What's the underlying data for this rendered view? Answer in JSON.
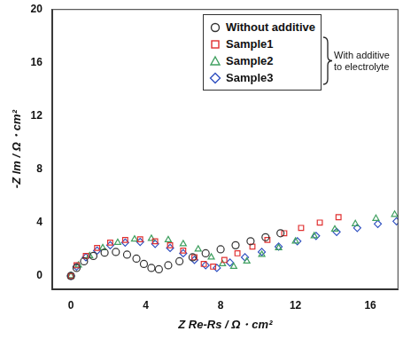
{
  "chart_data": {
    "type": "scatter",
    "x_label": "Z Re-Rs / Ω・cm²",
    "y_label": "-Z Im / Ω・cm²",
    "xlim": [
      -1,
      17.5
    ],
    "xticks": [
      0,
      4,
      8,
      12,
      16
    ],
    "ylim": [
      -1,
      20
    ],
    "yticks": [
      0,
      4,
      8,
      12,
      16,
      20
    ],
    "grid": false,
    "legend": "upper right",
    "series": [
      {
        "name": "Without additive",
        "color": "#333333",
        "marker": "circle",
        "x": [
          0,
          0.3,
          0.7,
          1.2,
          1.8,
          2.4,
          3.0,
          3.5,
          3.9,
          4.3,
          4.7,
          5.2,
          5.8,
          6.5,
          7.2,
          8.0,
          8.8,
          9.6,
          10.4,
          11.2
        ],
        "values": [
          0,
          0.6,
          1.1,
          1.5,
          1.75,
          1.8,
          1.6,
          1.3,
          0.9,
          0.6,
          0.5,
          0.8,
          1.1,
          1.4,
          1.7,
          2.0,
          2.3,
          2.6,
          2.9,
          3.2
        ]
      },
      {
        "name": "Sample1",
        "color": "#e03030",
        "marker": "square",
        "x": [
          0,
          0.3,
          0.8,
          1.4,
          2.1,
          2.9,
          3.7,
          4.5,
          5.3,
          6.0,
          6.6,
          7.1,
          7.6,
          8.2,
          8.9,
          9.7,
          10.5,
          11.4,
          12.3,
          13.3,
          14.3
        ],
        "values": [
          0,
          0.8,
          1.5,
          2.1,
          2.5,
          2.7,
          2.75,
          2.6,
          2.3,
          1.9,
          1.4,
          0.9,
          0.7,
          1.2,
          1.7,
          2.2,
          2.7,
          3.2,
          3.6,
          4.0,
          4.4
        ]
      },
      {
        "name": "Sample2",
        "color": "#40a060",
        "marker": "triangle",
        "x": [
          0,
          0.4,
          1.0,
          1.7,
          2.5,
          3.4,
          4.3,
          5.2,
          6.0,
          6.8,
          7.5,
          8.1,
          8.7,
          9.4,
          10.2,
          11.1,
          12.0,
          13.0,
          14.1,
          15.2,
          16.3,
          17.3
        ],
        "values": [
          0,
          0.8,
          1.5,
          2.1,
          2.5,
          2.75,
          2.8,
          2.7,
          2.4,
          2.0,
          1.4,
          0.9,
          0.7,
          1.1,
          1.6,
          2.1,
          2.6,
          3.0,
          3.5,
          3.9,
          4.3,
          4.6
        ]
      },
      {
        "name": "Sample3",
        "color": "#3050c0",
        "marker": "diamond",
        "x": [
          0,
          0.3,
          0.8,
          1.4,
          2.1,
          2.9,
          3.7,
          4.5,
          5.3,
          6.0,
          6.6,
          7.2,
          7.8,
          8.5,
          9.3,
          10.2,
          11.1,
          12.1,
          13.1,
          14.2,
          15.3,
          16.4,
          17.4
        ],
        "values": [
          0,
          0.7,
          1.4,
          1.9,
          2.3,
          2.5,
          2.55,
          2.4,
          2.1,
          1.7,
          1.2,
          0.8,
          0.6,
          1.0,
          1.4,
          1.8,
          2.2,
          2.6,
          3.0,
          3.3,
          3.6,
          3.9,
          4.1
        ]
      }
    ],
    "annotations": [
      {
        "text": "With additive to electrolyte",
        "series": [
          "Sample1",
          "Sample2",
          "Sample3"
        ]
      }
    ]
  }
}
